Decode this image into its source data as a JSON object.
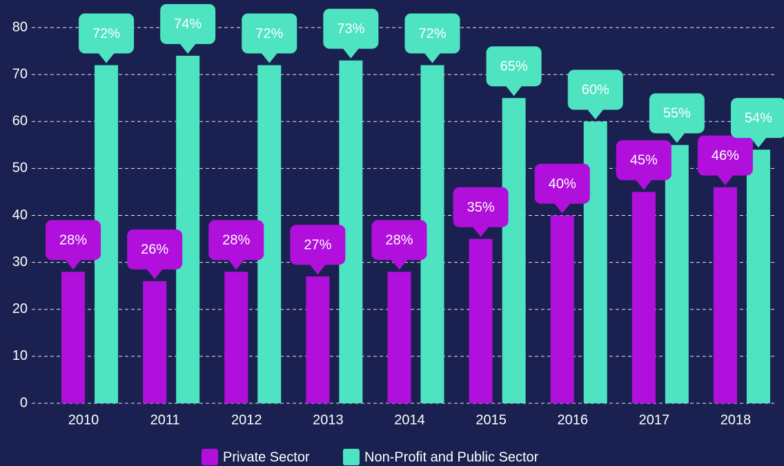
{
  "chart_data": {
    "type": "bar",
    "categories": [
      "2010",
      "2011",
      "2012",
      "2013",
      "2014",
      "2015",
      "2016",
      "2017",
      "2018"
    ],
    "series": [
      {
        "name": "Private Sector",
        "color": "#b10fdc",
        "values": [
          28,
          26,
          28,
          27,
          28,
          35,
          40,
          45,
          46
        ],
        "value_labels": [
          "28%",
          "26%",
          "28%",
          "27%",
          "28%",
          "35%",
          "40%",
          "45%",
          "46%"
        ]
      },
      {
        "name": "Non-Profit and Public Sector",
        "color": "#4ee3c1",
        "values": [
          72,
          74,
          72,
          73,
          72,
          65,
          60,
          55,
          54
        ],
        "value_labels": [
          "72%",
          "74%",
          "72%",
          "73%",
          "72%",
          "65%",
          "60%",
          "55%",
          "54%"
        ]
      }
    ],
    "ylim": [
      0,
      80
    ],
    "yticks": [
      0,
      10,
      20,
      30,
      40,
      50,
      60,
      70,
      80
    ],
    "grid": true,
    "legend": "bottom"
  }
}
